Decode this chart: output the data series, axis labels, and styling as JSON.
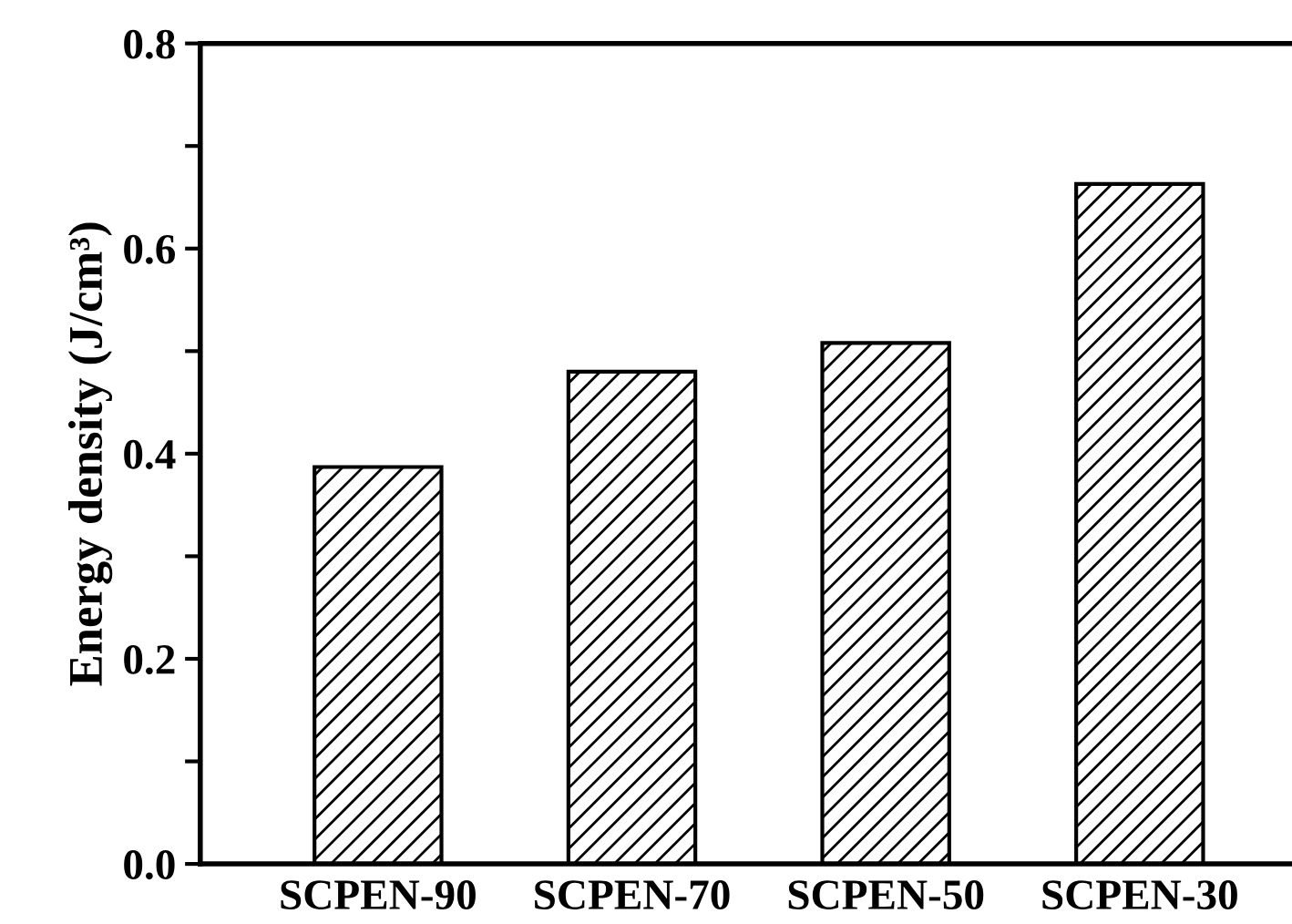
{
  "chart_data": {
    "type": "bar",
    "ylabel": "Energy density (J/cm³)",
    "categories": [
      "SCPEN-90",
      "SCPEN-70",
      "SCPEN-50",
      "SCPEN-30"
    ],
    "values": [
      0.387,
      0.48,
      0.508,
      0.663
    ],
    "color": "#000000",
    "ylim": [
      0,
      0.8
    ],
    "yticks": [
      {
        "value": 0,
        "label": "0.0"
      },
      {
        "value": 0.1,
        "label": null
      },
      {
        "value": 0.2,
        "label": "0.2"
      },
      {
        "value": 0.3,
        "label": null
      },
      {
        "value": 0.4,
        "label": "0.4"
      },
      {
        "value": 0.5,
        "label": null
      },
      {
        "value": 0.6,
        "label": "0.6"
      },
      {
        "value": 0.7,
        "label": null
      },
      {
        "value": 0.8,
        "label": "0.8"
      }
    ],
    "grid": false
  }
}
